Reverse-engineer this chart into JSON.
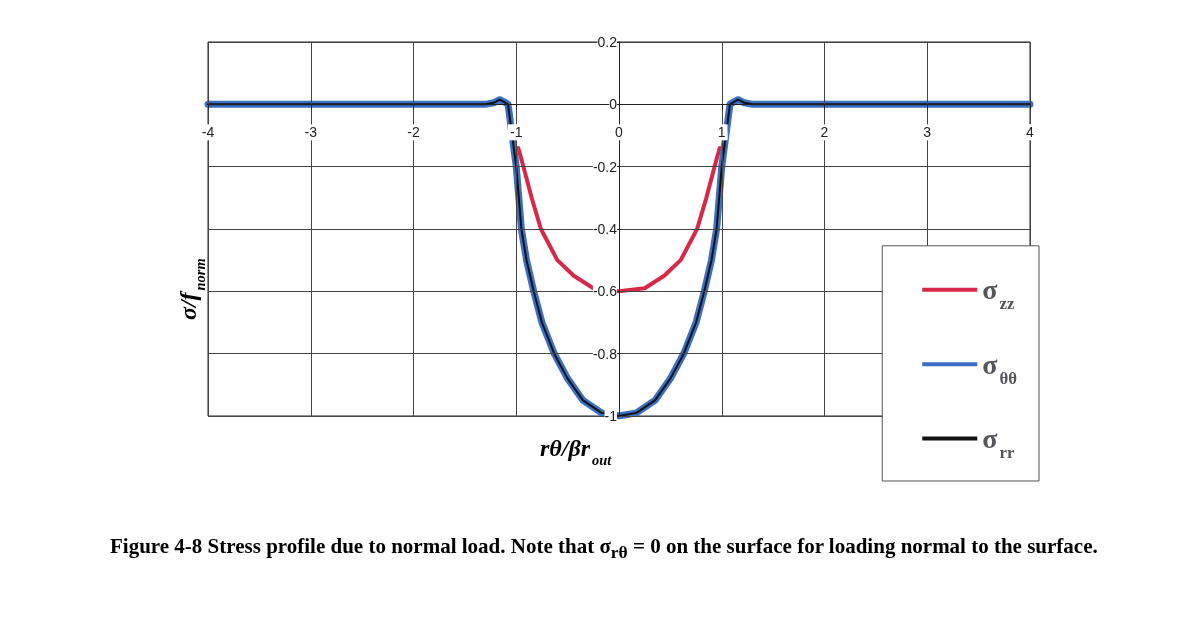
{
  "chart_data": {
    "type": "line",
    "xlabel": "rθ/βr$_{out}$",
    "ylabel": "σ/f$_{norm}$",
    "xlim": [
      -4,
      4
    ],
    "xticks": [
      -4,
      -3,
      -2,
      -1,
      0,
      1,
      2,
      3,
      4
    ],
    "ylim": [
      -1,
      0.2
    ],
    "yticks": [
      -1,
      -0.8,
      -0.6,
      -0.4,
      -0.2,
      0,
      0.2
    ],
    "grid": true,
    "legend": "bottom right",
    "marker": "none",
    "line_style": "solid",
    "series": [
      {
        "name": "σ$_{zz}$",
        "color": "#d8284a",
        "x": [
          -0.98,
          -0.93,
          -0.85,
          -0.76,
          -0.6,
          -0.44,
          -0.25,
          0,
          0.25,
          0.44,
          0.6,
          0.76,
          0.85,
          0.93,
          0.98
        ],
        "values": [
          -0.14,
          -0.2,
          -0.3,
          -0.4,
          -0.5,
          -0.55,
          -0.59,
          -0.6,
          -0.59,
          -0.55,
          -0.5,
          -0.4,
          -0.3,
          -0.2,
          -0.14
        ]
      },
      {
        "name": "σ$_{θθ}$",
        "color": "#3a6fc4",
        "x": [
          -4,
          -1.3,
          -1.22,
          -1.16,
          -1.12,
          -1.08,
          -1.04,
          -1,
          -0.95,
          -0.9,
          -0.83,
          -0.75,
          -0.63,
          -0.5,
          -0.35,
          -0.17,
          0,
          0.17,
          0.35,
          0.5,
          0.63,
          0.75,
          0.83,
          0.9,
          0.95,
          1,
          1.04,
          1.08,
          1.12,
          1.16,
          1.22,
          1.3,
          4
        ],
        "values": [
          0,
          0,
          0.005,
          0.015,
          0.008,
          0,
          null,
          -0.2,
          -0.4,
          -0.5,
          -0.6,
          -0.7,
          -0.8,
          -0.88,
          -0.95,
          -0.99,
          -1,
          -0.99,
          -0.95,
          -0.88,
          -0.8,
          -0.7,
          -0.6,
          -0.5,
          -0.4,
          -0.2,
          -0.1,
          0,
          0.008,
          0.015,
          0.005,
          0,
          0
        ]
      },
      {
        "name": "σ$_{rr}$",
        "color": "#111111",
        "x": [
          -4,
          -1.3,
          -1.22,
          -1.16,
          -1.12,
          -1.08,
          -1.04,
          -1,
          -0.95,
          -0.9,
          -0.83,
          -0.75,
          -0.63,
          -0.5,
          -0.35,
          -0.17,
          0,
          0.17,
          0.35,
          0.5,
          0.63,
          0.75,
          0.83,
          0.9,
          0.95,
          1,
          1.04,
          1.08,
          1.12,
          1.16,
          1.22,
          1.3,
          4
        ],
        "values": [
          0,
          0,
          0.005,
          0.015,
          0.008,
          0,
          null,
          -0.2,
          -0.4,
          -0.5,
          -0.6,
          -0.7,
          -0.8,
          -0.88,
          -0.95,
          -0.99,
          -1,
          -0.99,
          -0.95,
          -0.88,
          -0.8,
          -0.7,
          -0.6,
          -0.5,
          -0.4,
          -0.2,
          -0.1,
          0,
          0.008,
          0.015,
          0.005,
          0,
          0
        ]
      }
    ],
    "annotations": [
      "Figure 4-8  Stress profile due to normal load.  Note that σ$_{rθ}$ = 0 on the surface for loading normal to the surface."
    ]
  }
}
